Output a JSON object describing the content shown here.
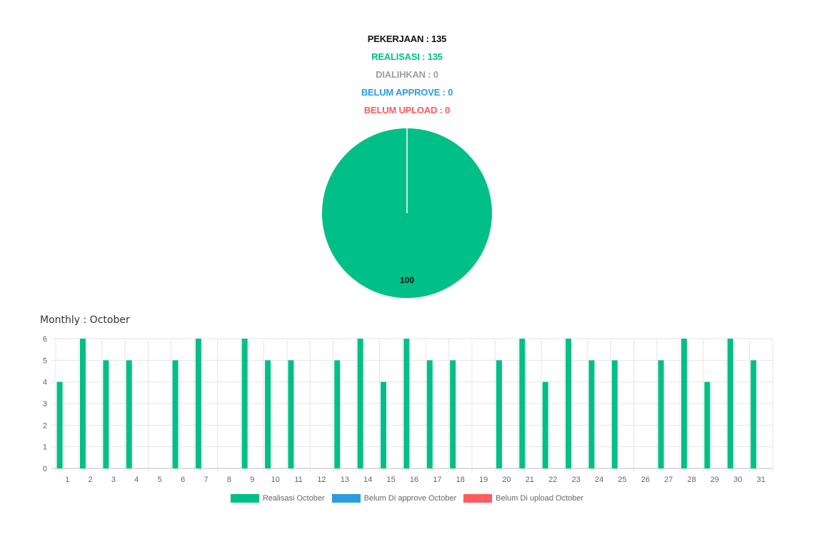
{
  "summary": {
    "pekerjaan": "PEKERJAAN : 135",
    "realisasi": "REALISASI : 135",
    "dialihkan": "DIALIHKAN : 0",
    "belum_approve": "BELUM APPROVE : 0",
    "belum_upload": "BELUM UPLOAD : 0"
  },
  "colors": {
    "black": "#111111",
    "green": "#00bf87",
    "gray": "#9e9e9e",
    "blue": "#2d9be0",
    "red": "#ff5a5f"
  },
  "monthly": {
    "title": "Monthly : October"
  },
  "chart_data": [
    {
      "type": "pie",
      "slices": [
        {
          "name": "Realisasi",
          "value": 100,
          "color": "#00bf87"
        }
      ],
      "data_labels": [
        "100"
      ]
    },
    {
      "type": "bar",
      "categories": [
        "1",
        "2",
        "3",
        "4",
        "5",
        "6",
        "7",
        "8",
        "9",
        "10",
        "11",
        "12",
        "13",
        "14",
        "15",
        "16",
        "17",
        "18",
        "19",
        "20",
        "21",
        "22",
        "23",
        "24",
        "25",
        "26",
        "27",
        "28",
        "29",
        "30",
        "31"
      ],
      "series": [
        {
          "name": "Realisasi October",
          "color": "#00bf87",
          "values": [
            4,
            6,
            5,
            5,
            0,
            5,
            6,
            0,
            6,
            5,
            5,
            0,
            5,
            6,
            4,
            6,
            5,
            5,
            0,
            5,
            6,
            4,
            6,
            5,
            5,
            0,
            5,
            6,
            4,
            6,
            5
          ]
        },
        {
          "name": "Belum Di approve October",
          "color": "#2d9be0",
          "values": [
            0,
            0,
            0,
            0,
            0,
            0,
            0,
            0,
            0,
            0,
            0,
            0,
            0,
            0,
            0,
            0,
            0,
            0,
            0,
            0,
            0,
            0,
            0,
            0,
            0,
            0,
            0,
            0,
            0,
            0,
            0
          ]
        },
        {
          "name": "Belum Di upload October",
          "color": "#ff5a5f",
          "values": [
            0,
            0,
            0,
            0,
            0,
            0,
            0,
            0,
            0,
            0,
            0,
            0,
            0,
            0,
            0,
            0,
            0,
            0,
            0,
            0,
            0,
            0,
            0,
            0,
            0,
            0,
            0,
            0,
            0,
            0,
            0
          ]
        }
      ],
      "y_ticks": [
        "0",
        "1",
        "2",
        "3",
        "4",
        "5",
        "6"
      ],
      "ylim": [
        0,
        6
      ],
      "grid": true,
      "legend_position": "bottom"
    }
  ]
}
